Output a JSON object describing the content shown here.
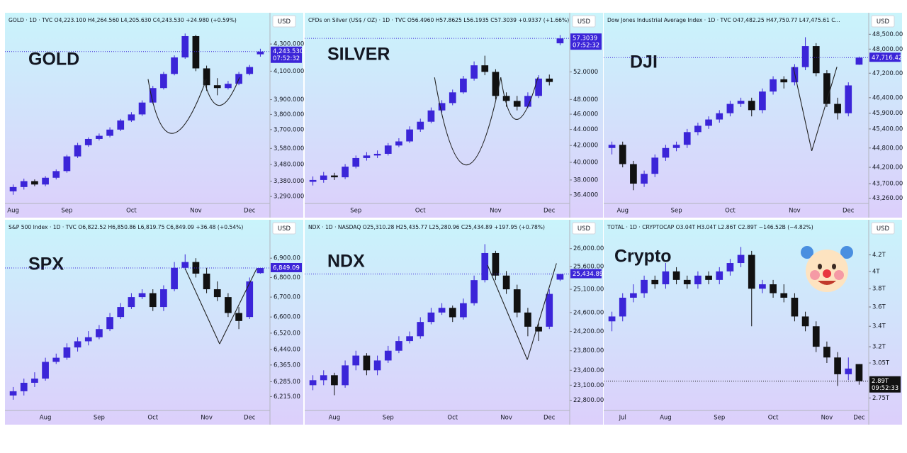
{
  "chart_data": [
    {
      "type": "candlestick",
      "title": "GOLD",
      "header": "GOLD · 1D · TVC  O4,223.100 H4,264.560 L4,205.630 C4,243.530 +24.980 (+0.59%)",
      "currency": "USD",
      "log_scale": true,
      "up_color": "#3b25d8",
      "down_color": "#111111",
      "categories": [
        "Aug",
        null,
        null,
        null,
        null,
        "Sep",
        null,
        null,
        null,
        null,
        null,
        "Oct",
        null,
        null,
        null,
        null,
        null,
        "Nov",
        null,
        null,
        null,
        null,
        "Dec",
        null
      ],
      "open": [
        3320,
        3345,
        3380,
        3360,
        3400,
        3440,
        3530,
        3600,
        3640,
        3660,
        3700,
        3760,
        3800,
        3880,
        3980,
        4080,
        4200,
        4360,
        4120,
        4000,
        3980,
        4010,
        4080,
        4223.1
      ],
      "high": [
        3360,
        3395,
        3390,
        3410,
        3450,
        3540,
        3615,
        3650,
        3675,
        3715,
        3770,
        3815,
        3895,
        3995,
        4095,
        4215,
        4380,
        4370,
        4140,
        4050,
        4030,
        4095,
        4145,
        4264.56
      ],
      "low": [
        3300,
        3330,
        3350,
        3350,
        3390,
        3430,
        3520,
        3590,
        3630,
        3650,
        3690,
        3750,
        3790,
        3870,
        3970,
        4070,
        4190,
        4100,
        3960,
        3930,
        3970,
        4000,
        4070,
        4205.63
      ],
      "close": [
        3345,
        3380,
        3360,
        3400,
        3440,
        3530,
        3600,
        3640,
        3660,
        3700,
        3760,
        3800,
        3880,
        3980,
        4080,
        4200,
        4360,
        4120,
        4000,
        3980,
        4010,
        4080,
        4130,
        4243.53
      ],
      "ylim": [
        3250,
        4420
      ],
      "yticks": [
        {
          "value": 4300,
          "label": "4,300.000"
        },
        {
          "value": 4100,
          "label": "4,100.000"
        },
        {
          "value": 3900,
          "label": "3,900.000"
        },
        {
          "value": 3800,
          "label": "3,800.000"
        },
        {
          "value": 3700,
          "label": "3,700.000"
        },
        {
          "value": 3580,
          "label": "3,580.000"
        },
        {
          "value": 3480,
          "label": "3,480.000"
        },
        {
          "value": 3380,
          "label": "3,380.000"
        },
        {
          "value": 3290,
          "label": "3,290.000"
        }
      ],
      "last_price": {
        "value": 4243.53,
        "label": "4,243.530"
      },
      "label_color": "#3b25d8",
      "countdown": "07:52:32"
    },
    {
      "type": "candlestick",
      "title": "SILVER",
      "header": "CFDs on Silver (US$ / OZ) · 1D · TVC  O56.4960 H57.8625 L56.1935 C57.3039 +0.9337 (+1.66%)",
      "currency": "USD",
      "log_scale": true,
      "up_color": "#3b25d8",
      "down_color": "#111111",
      "categories": [
        null,
        null,
        null,
        null,
        "Sep",
        null,
        null,
        null,
        null,
        null,
        "Oct",
        null,
        null,
        null,
        null,
        null,
        null,
        "Nov",
        null,
        null,
        null,
        null,
        "Dec",
        null
      ],
      "open": [
        37.8,
        38,
        38.5,
        38.3,
        39.5,
        40.5,
        40.8,
        41,
        42,
        42.5,
        44,
        45,
        46.5,
        47.5,
        49,
        51,
        53,
        52,
        48.5,
        47.8,
        47,
        48.5,
        51,
        56.496
      ],
      "high": [
        38.4,
        38.9,
        38.8,
        39.8,
        40.8,
        41.2,
        41.4,
        42.3,
        42.9,
        44.4,
        45.4,
        46.9,
        47.9,
        49.4,
        51.4,
        53.6,
        54.5,
        52.4,
        49,
        48.5,
        49,
        51.5,
        51.6,
        57.8625
      ],
      "low": [
        37.4,
        37.7,
        38,
        38.1,
        39.3,
        40.2,
        40.5,
        40.8,
        41.8,
        42.3,
        43.7,
        44.8,
        46.2,
        47.2,
        48.8,
        50.7,
        51.5,
        48,
        47,
        46.5,
        46.8,
        48.2,
        50,
        56.1935
      ],
      "close": [
        38,
        38.5,
        38.3,
        39.5,
        40.5,
        40.8,
        41,
        42,
        42.5,
        44,
        45,
        46.5,
        47.5,
        49,
        51,
        53,
        52,
        48.5,
        47.8,
        47,
        48.5,
        51,
        50.5,
        57.3039
      ],
      "ylim": [
        35.5,
        59
      ],
      "yticks": [
        {
          "value": 52,
          "label": "52.0000"
        },
        {
          "value": 48,
          "label": "48.0000"
        },
        {
          "value": 46,
          "label": "46.0000"
        },
        {
          "value": 44,
          "label": "44.0000"
        },
        {
          "value": 42,
          "label": "42.0000"
        },
        {
          "value": 40,
          "label": "40.0000"
        },
        {
          "value": 38,
          "label": "38.0000"
        },
        {
          "value": 36.4,
          "label": "36.4000"
        }
      ],
      "last_price": {
        "value": 57.3039,
        "label": "57.3039"
      },
      "label_color": "#3b25d8",
      "countdown": "07:52:32"
    },
    {
      "type": "candlestick",
      "title": "DJI",
      "header": "Dow Jones Industrial Average Index · 1D · TVC  O47,482.25 H47,750.77 L47,475.61 C...",
      "currency": "USD",
      "log_scale": true,
      "up_color": "#3b25d8",
      "down_color": "#111111",
      "categories": [
        null,
        "Aug",
        null,
        null,
        null,
        null,
        "Sep",
        null,
        null,
        null,
        null,
        "Oct",
        null,
        null,
        null,
        null,
        null,
        "Nov",
        null,
        null,
        null,
        null,
        "Dec",
        null
      ],
      "open": [
        44800,
        44900,
        44300,
        43700,
        44000,
        44500,
        44800,
        44900,
        45300,
        45500,
        45700,
        45900,
        46200,
        46300,
        46000,
        46600,
        47000,
        46900,
        47400,
        48100,
        47200,
        46200,
        45900,
        47482.25
      ],
      "high": [
        45000,
        45000,
        44400,
        44100,
        44600,
        44900,
        45000,
        45400,
        45600,
        45800,
        46000,
        46300,
        46400,
        46400,
        46700,
        47100,
        47100,
        47500,
        48400,
        48200,
        47300,
        46400,
        46900,
        47750.77
      ],
      "low": [
        44600,
        44200,
        43500,
        43600,
        43900,
        44400,
        44700,
        44800,
        45200,
        45400,
        45600,
        45800,
        46100,
        45800,
        45900,
        46500,
        46700,
        46800,
        47300,
        47100,
        46100,
        45700,
        45800,
        47475.61
      ],
      "close": [
        44900,
        44300,
        43700,
        44000,
        44500,
        44800,
        44900,
        45300,
        45500,
        45700,
        45900,
        46200,
        46300,
        46000,
        46600,
        47000,
        46900,
        47400,
        48100,
        47200,
        46200,
        45900,
        46800,
        47716.42
      ],
      "ylim": [
        43100,
        48700
      ],
      "yticks": [
        {
          "value": 48500,
          "label": "48,500.00"
        },
        {
          "value": 48000,
          "label": "48,000.00"
        },
        {
          "value": 47200,
          "label": "47,200.00"
        },
        {
          "value": 46400,
          "label": "46,400.00"
        },
        {
          "value": 45900,
          "label": "45,900.00"
        },
        {
          "value": 45400,
          "label": "45,400.00"
        },
        {
          "value": 44800,
          "label": "44,800.00"
        },
        {
          "value": 44200,
          "label": "44,200.00"
        },
        {
          "value": 43700,
          "label": "43,700.00"
        },
        {
          "value": 43260,
          "label": "43,260.00"
        }
      ],
      "last_price": {
        "value": 47716.42,
        "label": "47,716.42"
      },
      "label_color": "#3b25d8"
    },
    {
      "type": "candlestick",
      "title": "SPX",
      "header": "S&P 500 Index · 1D · TVC  O6,822.52 H6,850.86 L6,819.75 C6,849.09 +36.48 (+0.54%)",
      "currency": "USD",
      "log_scale": true,
      "up_color": "#3b25d8",
      "down_color": "#111111",
      "categories": [
        null,
        null,
        null,
        "Aug",
        null,
        null,
        null,
        null,
        "Sep",
        null,
        null,
        null,
        null,
        "Oct",
        null,
        null,
        null,
        null,
        "Nov",
        null,
        null,
        null,
        "Dec",
        null
      ],
      "open": [
        6220,
        6240,
        6280,
        6300,
        6380,
        6400,
        6450,
        6480,
        6500,
        6540,
        6600,
        6650,
        6700,
        6720,
        6650,
        6740,
        6850,
        6880,
        6820,
        6740,
        6700,
        6620,
        6600,
        6822.52
      ],
      "high": [
        6260,
        6300,
        6330,
        6400,
        6420,
        6470,
        6500,
        6530,
        6560,
        6620,
        6670,
        6720,
        6740,
        6740,
        6760,
        6880,
        6920,
        6900,
        6850,
        6780,
        6720,
        6650,
        6800,
        6850.86
      ],
      "low": [
        6200,
        6220,
        6260,
        6290,
        6370,
        6390,
        6430,
        6460,
        6490,
        6530,
        6590,
        6640,
        6690,
        6630,
        6630,
        6730,
        6840,
        6800,
        6720,
        6680,
        6600,
        6540,
        6590,
        6819.75
      ],
      "close": [
        6240,
        6280,
        6300,
        6380,
        6400,
        6450,
        6480,
        6500,
        6540,
        6600,
        6650,
        6700,
        6720,
        6650,
        6740,
        6850,
        6880,
        6820,
        6740,
        6700,
        6620,
        6580,
        6780,
        6849.09
      ],
      "ylim": [
        6150,
        7020
      ],
      "yticks": [
        {
          "value": 6900,
          "label": "6,900.00"
        },
        {
          "value": 6800,
          "label": "6,800.00"
        },
        {
          "value": 6700,
          "label": "6,700.00"
        },
        {
          "value": 6600,
          "label": "6,600.00"
        },
        {
          "value": 6520,
          "label": "6,520.00"
        },
        {
          "value": 6440,
          "label": "6,440.00"
        },
        {
          "value": 6365,
          "label": "6,365.00"
        },
        {
          "value": 6285,
          "label": "6,285.00"
        },
        {
          "value": 6215,
          "label": "6,215.00"
        }
      ],
      "last_price": {
        "value": 6849.09,
        "label": "6,849.09"
      },
      "label_color": "#3b25d8"
    },
    {
      "type": "candlestick",
      "title": "NDX",
      "header": "NDX · 1D · NASDAQ  O25,310.28 H25,435.77 L25,280.96 C25,434.89 +197.95 (+0.78%)",
      "currency": "USD",
      "log_scale": true,
      "up_color": "#3b25d8",
      "down_color": "#111111",
      "categories": [
        null,
        null,
        "Aug",
        null,
        null,
        null,
        null,
        "Sep",
        null,
        null,
        null,
        null,
        null,
        "Oct",
        null,
        null,
        null,
        null,
        "Nov",
        null,
        null,
        null,
        "Dec",
        null
      ],
      "open": [
        23100,
        23200,
        23300,
        23100,
        23500,
        23700,
        23400,
        23600,
        23800,
        24000,
        24100,
        24400,
        24600,
        24700,
        24500,
        24800,
        25300,
        25900,
        25400,
        25100,
        24600,
        24300,
        24300,
        25310.28
      ],
      "high": [
        23300,
        23400,
        23350,
        23600,
        23800,
        23750,
        23700,
        23900,
        24100,
        24200,
        24500,
        24700,
        24800,
        24750,
        24900,
        25400,
        26100,
        25950,
        25500,
        25200,
        24700,
        24400,
        25100,
        25435.77
      ],
      "low": [
        23000,
        23100,
        22900,
        23050,
        23400,
        23300,
        23300,
        23550,
        23750,
        23950,
        24050,
        24350,
        24550,
        24400,
        24450,
        24750,
        25250,
        25300,
        25000,
        24500,
        24100,
        24000,
        24250,
        25280.96
      ],
      "close": [
        23200,
        23300,
        23100,
        23500,
        23700,
        23400,
        23600,
        23800,
        24000,
        24100,
        24400,
        24600,
        24700,
        24500,
        24800,
        25300,
        25900,
        25400,
        25100,
        24600,
        24300,
        24200,
        25000,
        25434.89
      ],
      "ylim": [
        22600,
        26300
      ],
      "yticks": [
        {
          "value": 26000,
          "label": "26,000.00"
        },
        {
          "value": 25600,
          "label": "25,600.00"
        },
        {
          "value": 25100,
          "label": "25,100.00"
        },
        {
          "value": 24600,
          "label": "24,600.00"
        },
        {
          "value": 24200,
          "label": "24,200.00"
        },
        {
          "value": 23800,
          "label": "23,800.00"
        },
        {
          "value": 23400,
          "label": "23,400.00"
        },
        {
          "value": 23100,
          "label": "23,100.00"
        },
        {
          "value": 22800,
          "label": "22,800.00"
        }
      ],
      "last_price": {
        "value": 25434.89,
        "label": "25,434.89"
      },
      "label_color": "#3b25d8"
    },
    {
      "type": "candlestick",
      "title": "Crypto",
      "header": "TOTAL · 1D · CRYPTOCAP  O3.04T H3.04T L2.86T C2.89T −146.52B (−4.82%)",
      "currency": "USD",
      "log_scale": true,
      "up_color": "#3b25d8",
      "down_color": "#111111",
      "categories": [
        null,
        "Jul",
        null,
        null,
        null,
        "Aug",
        null,
        null,
        null,
        null,
        "Sep",
        null,
        null,
        null,
        null,
        "Oct",
        null,
        null,
        null,
        null,
        "Nov",
        null,
        null,
        "Dec"
      ],
      "open": [
        3.45,
        3.5,
        3.7,
        3.75,
        3.9,
        3.85,
        4.0,
        3.9,
        3.85,
        3.95,
        3.9,
        4.0,
        4.1,
        4.2,
        3.8,
        3.85,
        3.75,
        3.7,
        3.5,
        3.4,
        3.2,
        3.1,
        2.95,
        3.04
      ],
      "high": [
        3.55,
        3.75,
        3.85,
        3.95,
        3.95,
        4.1,
        4.05,
        3.95,
        4.0,
        4.0,
        4.05,
        4.15,
        4.3,
        4.25,
        3.9,
        3.9,
        3.85,
        3.75,
        3.55,
        3.45,
        3.25,
        3.15,
        3.1,
        3.04
      ],
      "low": [
        3.35,
        3.45,
        3.65,
        3.7,
        3.8,
        3.8,
        3.85,
        3.8,
        3.8,
        3.85,
        3.85,
        3.95,
        4.05,
        3.4,
        3.75,
        3.7,
        3.65,
        3.45,
        3.35,
        3.15,
        3.05,
        2.85,
        2.9,
        2.86
      ],
      "close": [
        3.5,
        3.7,
        3.75,
        3.9,
        3.85,
        4.0,
        3.9,
        3.85,
        3.95,
        3.9,
        4.0,
        4.1,
        4.2,
        3.8,
        3.85,
        3.75,
        3.7,
        3.5,
        3.4,
        3.2,
        3.1,
        2.95,
        3.0,
        2.89
      ],
      "ylim": [
        2.65,
        4.45
      ],
      "yticks": [
        {
          "value": 4.2,
          "label": "4.2T"
        },
        {
          "value": 4,
          "label": "4T"
        },
        {
          "value": 3.8,
          "label": "3.8T"
        },
        {
          "value": 3.6,
          "label": "3.6T"
        },
        {
          "value": 3.4,
          "label": "3.4T"
        },
        {
          "value": 3.2,
          "label": "3.2T"
        },
        {
          "value": 3.05,
          "label": "3.05T"
        },
        {
          "value": 2.75,
          "label": "2.75T"
        }
      ],
      "last_price": {
        "value": 2.89,
        "label": "2.89T"
      },
      "label_color": "#111111",
      "countdown": "09:52:33"
    }
  ]
}
